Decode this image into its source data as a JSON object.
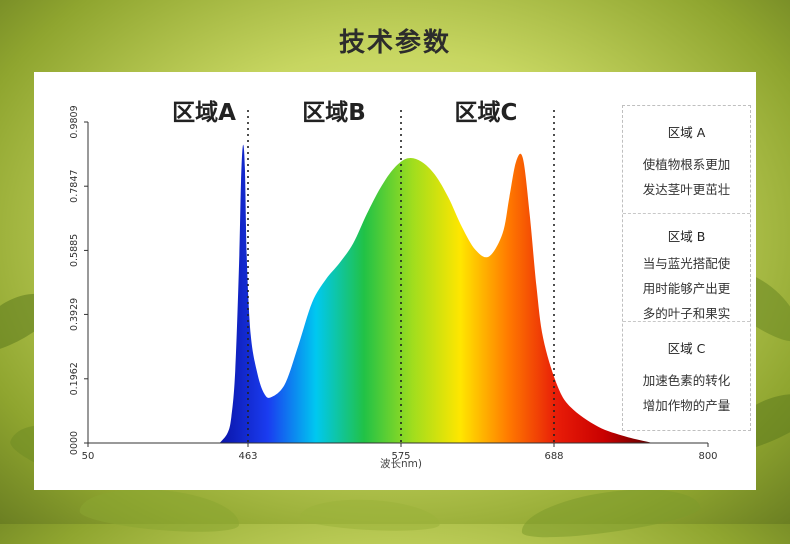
{
  "page": {
    "title": "技术参数"
  },
  "chart_data": {
    "type": "area",
    "title": "",
    "xlabel": "波长nm)",
    "ylabel": "",
    "x_ticks": [
      "50",
      "463",
      "575",
      "688",
      "800"
    ],
    "y_ticks": [
      "0000",
      "0.1962",
      "0.3929",
      "0.5885",
      "0.7847",
      "0.9809"
    ],
    "ylim": [
      0,
      0.9809
    ],
    "grid": false,
    "regions": [
      {
        "label": "区域A",
        "boundary": 463
      },
      {
        "label": "区域B",
        "boundary": 575
      },
      {
        "label": "区域C",
        "boundary": 688
      }
    ],
    "series": [
      {
        "x": [
          390,
          410,
          420,
          430,
          440,
          445,
          450,
          455,
          460,
          465,
          470,
          475,
          480,
          490,
          500,
          510,
          520,
          530,
          540,
          550,
          560,
          570,
          580,
          590,
          600,
          610,
          620,
          630,
          640,
          650,
          655,
          660,
          665,
          670,
          675,
          680,
          690,
          700,
          720,
          740,
          760
        ],
        "y": [
          0.0,
          0.03,
          0.08,
          0.22,
          0.55,
          0.8,
          0.91,
          0.84,
          0.56,
          0.33,
          0.21,
          0.15,
          0.14,
          0.18,
          0.3,
          0.43,
          0.5,
          0.55,
          0.61,
          0.7,
          0.78,
          0.84,
          0.87,
          0.86,
          0.82,
          0.75,
          0.66,
          0.59,
          0.57,
          0.64,
          0.75,
          0.86,
          0.87,
          0.7,
          0.48,
          0.32,
          0.18,
          0.11,
          0.05,
          0.02,
          0.0
        ]
      }
    ]
  },
  "info": [
    {
      "title": "区域 A",
      "lines": [
        "使植物根系更加",
        "发达茎叶更茁壮"
      ]
    },
    {
      "title": "区域 B",
      "lines": [
        "当与蓝光搭配使",
        "用时能够产出更",
        "多的叶子和果实"
      ]
    },
    {
      "title": "区域 C",
      "lines": [
        "加速色素的转化",
        "增加作物的产量"
      ]
    }
  ],
  "colors": {
    "panel_bg": "#ffffff",
    "spectrum": [
      "#0a14a8",
      "#1a3cf0",
      "#00c8f0",
      "#21c246",
      "#9fdd1e",
      "#ffe600",
      "#ff7a00",
      "#e81c08",
      "#c80000",
      "#5a0000"
    ]
  }
}
